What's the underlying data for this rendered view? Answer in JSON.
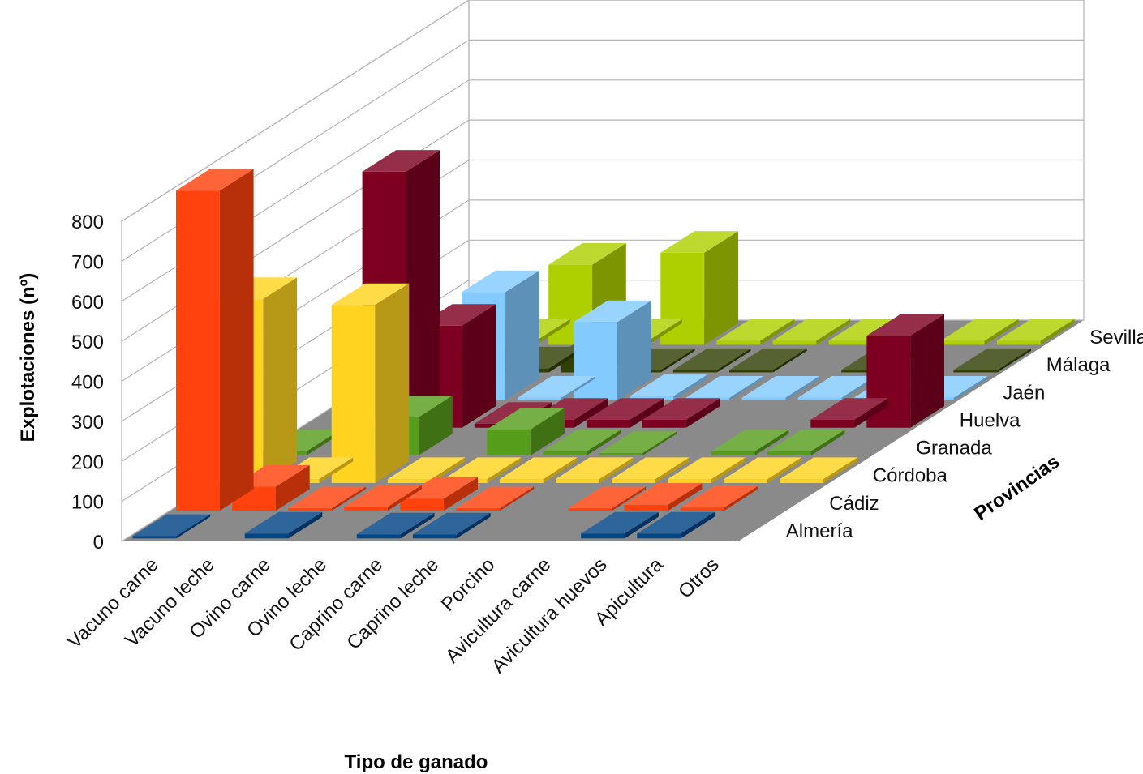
{
  "chart_data": {
    "type": "bar",
    "subtype": "3d-column",
    "title": "",
    "xlabel": "Tipo de ganado",
    "ylabel": "Explotaciones (nº)",
    "zlabel": "Provincias",
    "ylim": [
      0,
      800
    ],
    "yticks": [
      "0",
      "100",
      "200",
      "300",
      "400",
      "500",
      "600",
      "700",
      "800"
    ],
    "grid": true,
    "legend": "none",
    "categories": [
      "Vacuno carne",
      "Vacuno leche",
      "Ovino carne",
      "Ovino leche",
      "Caprino carne",
      "Caprino leche",
      "Porcino",
      "Avicultura carne",
      "Avicultura huevos",
      "Apicultura",
      "Otros"
    ],
    "series": [
      {
        "name": "Almería",
        "color": "#004586",
        "values": [
          5,
          0,
          12,
          0,
          10,
          10,
          0,
          0,
          12,
          12,
          0
        ]
      },
      {
        "name": "Cádiz",
        "color": "#ff420e",
        "values": [
          800,
          60,
          5,
          10,
          30,
          5,
          0,
          5,
          15,
          8,
          0
        ]
      },
      {
        "name": "Córdoba",
        "color": "#ffd320",
        "values": [
          460,
          10,
          445,
          10,
          10,
          10,
          10,
          10,
          10,
          10,
          10
        ]
      },
      {
        "name": "Granada",
        "color": "#579d1c",
        "values": [
          10,
          0,
          95,
          0,
          65,
          10,
          5,
          0,
          10,
          10,
          0
        ]
      },
      {
        "name": "Huelva",
        "color": "#7e0021",
        "values": [
          0,
          640,
          255,
          10,
          20,
          20,
          20,
          0,
          0,
          20,
          230
        ]
      },
      {
        "name": "Jaén",
        "color": "#83caff",
        "values": [
          0,
          75,
          270,
          5,
          195,
          10,
          5,
          5,
          5,
          5,
          5
        ]
      },
      {
        "name": "Málaga",
        "color": "#314004",
        "values": [
          5,
          5,
          10,
          50,
          5,
          5,
          5,
          0,
          5,
          0,
          5
        ]
      },
      {
        "name": "Sevilla",
        "color": "#aecf00",
        "values": [
          0,
          10,
          200,
          10,
          230,
          10,
          10,
          10,
          0,
          10,
          10
        ]
      }
    ]
  }
}
